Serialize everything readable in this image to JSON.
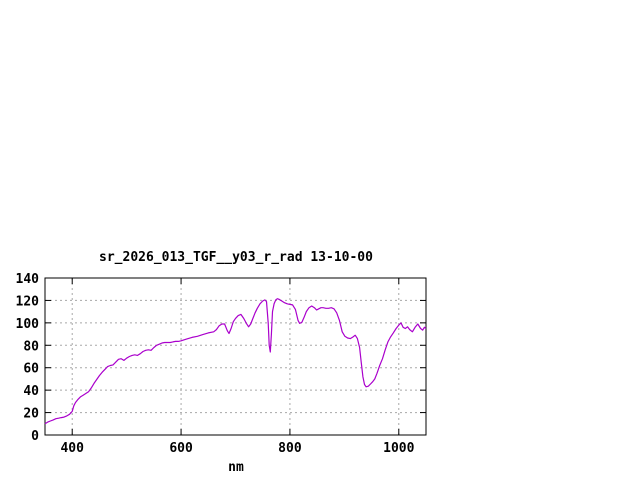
{
  "window": {
    "background": "#ffffff"
  },
  "colors": {
    "line": "#aa00cc",
    "grid": "#a8a8a8",
    "frame": "#000000",
    "text": "#000000",
    "background": "#ffffff"
  },
  "chart_data": {
    "type": "line",
    "title": "sr_2026_013_TGF__y03_r_rad 13-10-00",
    "xlabel": "nm",
    "ylabel": "",
    "xlim": [
      350,
      1050
    ],
    "ylim": [
      0,
      140
    ],
    "xticks": [
      400,
      600,
      800,
      1000
    ],
    "yticks": [
      0,
      20,
      40,
      60,
      80,
      100,
      120,
      140
    ],
    "grid": true,
    "legend_position": "none",
    "series": [
      {
        "name": "sr_2026_013_TGF__y03_r_rad",
        "color": "#aa00cc",
        "x": [
          350,
          355,
          360,
          365,
          370,
          375,
          380,
          385,
          390,
          395,
          400,
          403,
          406,
          410,
          415,
          420,
          425,
          430,
          435,
          440,
          445,
          450,
          455,
          460,
          465,
          470,
          475,
          480,
          485,
          490,
          495,
          500,
          505,
          510,
          515,
          520,
          525,
          530,
          535,
          540,
          545,
          550,
          555,
          560,
          565,
          570,
          575,
          580,
          585,
          590,
          595,
          600,
          610,
          620,
          630,
          640,
          650,
          660,
          665,
          670,
          675,
          680,
          685,
          688,
          692,
          696,
          700,
          705,
          710,
          715,
          720,
          724,
          728,
          732,
          736,
          740,
          745,
          750,
          754,
          757,
          760,
          762,
          764,
          766,
          768,
          771,
          774,
          777,
          780,
          785,
          790,
          795,
          800,
          805,
          810,
          815,
          818,
          822,
          826,
          830,
          835,
          840,
          845,
          849,
          853,
          857,
          861,
          866,
          871,
          876,
          881,
          886,
          891,
          896,
          901,
          906,
          911,
          916,
          920,
          924,
          928,
          931,
          934,
          937,
          940,
          944,
          948,
          952,
          956,
          960,
          965,
          970,
          975,
          980,
          985,
          990,
          995,
          1000,
          1004,
          1008,
          1012,
          1016,
          1020,
          1025,
          1030,
          1035,
          1040,
          1044,
          1047,
          1050
        ],
        "y": [
          10,
          11.5,
          12.5,
          13.5,
          14.5,
          15,
          15.5,
          16,
          17,
          18.5,
          21,
          26,
          29,
          31.5,
          34,
          35.5,
          37,
          38.5,
          42,
          46,
          49.5,
          53,
          56,
          58.5,
          61,
          62,
          62.5,
          65,
          67.5,
          68,
          66.5,
          68.5,
          70,
          71,
          71.5,
          71,
          72.5,
          74.5,
          75.5,
          76,
          75.5,
          78,
          80,
          81,
          82,
          82.5,
          82.5,
          82.5,
          83,
          83.5,
          83.5,
          84,
          85.5,
          87,
          88,
          89.5,
          91,
          92,
          94,
          97.5,
          99,
          99,
          93,
          90.5,
          95,
          101,
          104,
          106.5,
          107.5,
          104,
          99.5,
          96.5,
          99,
          104,
          109,
          113,
          117,
          119.5,
          120.5,
          119,
          100,
          80,
          74,
          90,
          110,
          117,
          120.5,
          121.5,
          121,
          119.5,
          118,
          117,
          116.5,
          116,
          112,
          102,
          99.5,
          100.5,
          105,
          110,
          113.5,
          115,
          113.5,
          111.5,
          112.5,
          113.5,
          113.5,
          113,
          113,
          113.5,
          112.5,
          109,
          102,
          92,
          88,
          86.5,
          86,
          87.5,
          89,
          86,
          78,
          65,
          52,
          45,
          43,
          43.5,
          45.5,
          47.5,
          50,
          55,
          62,
          68,
          76,
          83,
          87.5,
          91,
          95,
          98,
          100,
          96,
          95,
          96.5,
          94,
          92,
          96,
          99,
          95,
          93.5,
          96,
          95
        ]
      }
    ]
  }
}
